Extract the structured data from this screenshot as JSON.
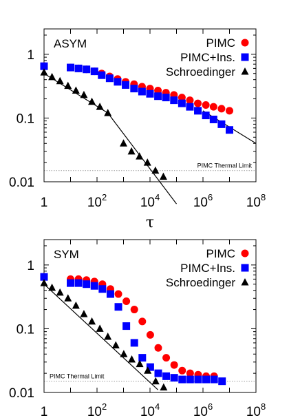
{
  "chart_data": [
    {
      "type": "scatter",
      "panel_label": "ASYM",
      "xlabel": "τ",
      "xscale": "log",
      "yscale": "log",
      "xlim": [
        1,
        100000000
      ],
      "ylim": [
        0.01,
        2.5
      ],
      "x_ticks": [
        {
          "base": "1",
          "exp": ""
        },
        {
          "base": "10",
          "exp": "2"
        },
        {
          "base": "10",
          "exp": "4"
        },
        {
          "base": "10",
          "exp": "6"
        },
        {
          "base": "10",
          "exp": "8"
        }
      ],
      "y_ticks": [
        "1",
        "0.1",
        "0.01"
      ],
      "legend_position": "top-right",
      "annotation": "PIMC Thermal Limit",
      "thermal_limit": 0.015,
      "series": [
        {
          "name": "PIMC",
          "marker": "circle",
          "color": "#ff0000",
          "x": [
            1,
            10,
            20,
            40,
            80,
            150,
            300,
            600,
            1200,
            2500,
            5000,
            10000,
            20000,
            40000,
            80000,
            160000,
            320000,
            640000,
            1280000,
            2500000,
            5000000,
            10000000
          ],
          "y": [
            0.65,
            0.62,
            0.6,
            0.58,
            0.54,
            0.5,
            0.45,
            0.41,
            0.37,
            0.34,
            0.31,
            0.29,
            0.27,
            0.25,
            0.23,
            0.21,
            0.19,
            0.17,
            0.16,
            0.15,
            0.14,
            0.13
          ]
        },
        {
          "name": "PIMC+Ins.",
          "marker": "square",
          "color": "#0000ff",
          "x": [
            1,
            10,
            20,
            40,
            80,
            150,
            300,
            600,
            1200,
            2500,
            5000,
            10000,
            20000,
            40000,
            80000,
            160000,
            320000,
            640000,
            1280000,
            2500000,
            5000000,
            10000000
          ],
          "y": [
            0.65,
            0.62,
            0.6,
            0.58,
            0.54,
            0.47,
            0.42,
            0.37,
            0.33,
            0.29,
            0.26,
            0.24,
            0.22,
            0.21,
            0.19,
            0.17,
            0.15,
            0.13,
            0.11,
            0.095,
            0.08,
            0.065
          ]
        },
        {
          "name": "Schroedinger",
          "marker": "triangle",
          "color": "#000000",
          "x": [
            1,
            2,
            4,
            8,
            16,
            32,
            64,
            128,
            256,
            1000,
            2000,
            4000,
            8000,
            16000,
            32000
          ],
          "y": [
            0.52,
            0.44,
            0.38,
            0.32,
            0.27,
            0.23,
            0.18,
            0.15,
            0.12,
            0.04,
            0.03,
            0.025,
            0.02,
            0.015,
            0.012
          ]
        }
      ],
      "fit_lines": [
        {
          "x": [
            1,
            256
          ],
          "y": [
            0.5,
            0.12
          ]
        },
        {
          "x": [
            256,
            100000
          ],
          "y": [
            0.12,
            0.0045
          ]
        },
        {
          "x": [
            1000000,
            100000000
          ],
          "y": [
            0.13,
            0.04
          ]
        }
      ]
    },
    {
      "type": "scatter",
      "panel_label": "SYM",
      "xlabel": "",
      "xscale": "log",
      "yscale": "log",
      "xlim": [
        1,
        100000000
      ],
      "ylim": [
        0.01,
        2.5
      ],
      "x_ticks": [
        {
          "base": "1",
          "exp": ""
        },
        {
          "base": "10",
          "exp": "2"
        },
        {
          "base": "10",
          "exp": "4"
        },
        {
          "base": "10",
          "exp": "6"
        },
        {
          "base": "10",
          "exp": "8"
        }
      ],
      "y_ticks": [
        "1",
        "0.1",
        "0.01"
      ],
      "legend_position": "top-right",
      "annotation": "PIMC Thermal Limit",
      "thermal_limit": 0.015,
      "series": [
        {
          "name": "PIMC",
          "marker": "circle",
          "color": "#ff0000",
          "x": [
            1,
            10,
            20,
            40,
            80,
            160,
            320,
            640,
            1280,
            2560,
            5120,
            10240,
            20480,
            40960,
            81920,
            163840,
            327680,
            655360,
            1310720,
            2621440
          ],
          "y": [
            0.65,
            0.6,
            0.6,
            0.58,
            0.55,
            0.5,
            0.42,
            0.35,
            0.27,
            0.2,
            0.13,
            0.08,
            0.05,
            0.035,
            0.027,
            0.022,
            0.02,
            0.019,
            0.018,
            0.018
          ]
        },
        {
          "name": "PIMC+Ins.",
          "marker": "square",
          "color": "#0000ff",
          "x": [
            1,
            10,
            20,
            40,
            80,
            160,
            320,
            640,
            1280,
            2560,
            5120,
            10240,
            20480,
            40960,
            81920,
            163840,
            327680,
            655360,
            1310720,
            2621440,
            5242880
          ],
          "y": [
            0.65,
            0.52,
            0.52,
            0.5,
            0.47,
            0.42,
            0.35,
            0.22,
            0.11,
            0.06,
            0.035,
            0.025,
            0.02,
            0.018,
            0.017,
            0.016,
            0.016,
            0.016,
            0.016,
            0.016,
            0.015
          ]
        },
        {
          "name": "Schroedinger",
          "marker": "triangle",
          "color": "#000000",
          "x": [
            1,
            2,
            4,
            8,
            16,
            32,
            64,
            128,
            256,
            512,
            1024,
            2048,
            4096,
            8192,
            16384,
            32768
          ],
          "y": [
            0.52,
            0.44,
            0.37,
            0.3,
            0.23,
            0.17,
            0.13,
            0.1,
            0.075,
            0.055,
            0.04,
            0.033,
            0.028,
            0.022,
            0.015,
            0.012
          ]
        }
      ],
      "fit_lines": [
        {
          "x": [
            1,
            20000
          ],
          "y": [
            0.5,
            0.011
          ]
        }
      ]
    }
  ]
}
